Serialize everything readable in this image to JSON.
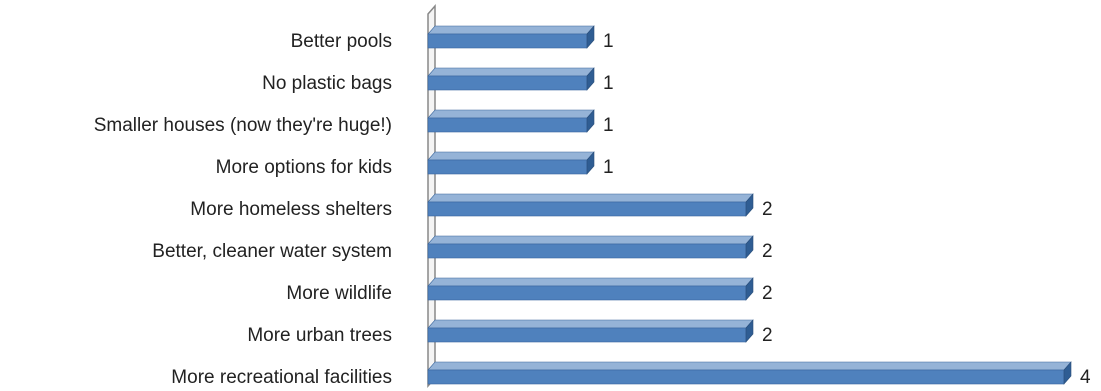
{
  "chart_data": {
    "type": "bar",
    "orientation": "horizontal",
    "style": "3d",
    "categories": [
      "Better pools",
      "No plastic bags",
      "Smaller houses (now they're huge!)",
      "More options for kids",
      "More homeless shelters",
      "Better, cleaner water system",
      "More wildlife",
      "More urban trees",
      "More recreational facilities"
    ],
    "values": [
      1,
      1,
      1,
      1,
      2,
      2,
      2,
      2,
      4
    ],
    "xlim": [
      0,
      4
    ],
    "grid": false,
    "legend": "none",
    "data_labels": true,
    "colors": {
      "bar": "#4f81bd",
      "bar_top": "#95b3d7",
      "bar_side": "#2f5d93",
      "wall": "#888888"
    }
  }
}
